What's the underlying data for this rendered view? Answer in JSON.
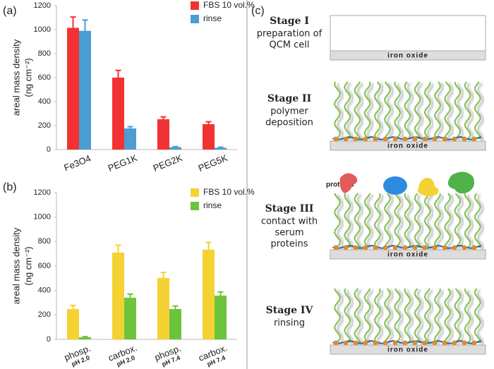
{
  "panel_labels": [
    "(a)",
    "(b)",
    "(c)"
  ],
  "chart_data": [
    {
      "type": "bar",
      "ylabel": [
        "areal mass density",
        "(ng cm⁻²)"
      ],
      "categories": [
        "Fe3O4",
        "PEG1K",
        "PEG2K",
        "PEG5K"
      ],
      "series": [
        {
          "name": "FBS 10 vol.%",
          "color": "#f23232",
          "values": [
            1015,
            600,
            253,
            212
          ],
          "errors": [
            90,
            60,
            20,
            20
          ]
        },
        {
          "name": "rinse",
          "color": "#4b9dd2",
          "values": [
            990,
            176,
            20,
            15
          ],
          "errors": [
            90,
            15,
            5,
            5
          ]
        }
      ],
      "ylim": [
        0,
        1200
      ],
      "yticks": [
        0,
        200,
        400,
        600,
        800,
        1000,
        1200
      ]
    },
    {
      "type": "bar",
      "ylabel": [
        "areal mass density",
        "(ng cm⁻²)"
      ],
      "categories": [
        "phosp.",
        "carbox.",
        "phosp.",
        "carbox."
      ],
      "category_sublabels": [
        "pH 2.0",
        "pH 2.0",
        "pH 7.4",
        "pH 7.4"
      ],
      "series": [
        {
          "name": "FBS 10 vol.%",
          "color": "#f5d233",
          "values": [
            248,
            710,
            502,
            733
          ],
          "errors": [
            30,
            60,
            45,
            60
          ]
        },
        {
          "name": "rinse",
          "color": "#6cc43c",
          "values": [
            17,
            340,
            248,
            358
          ],
          "errors": [
            5,
            30,
            25,
            30
          ]
        }
      ],
      "ylim": [
        0,
        1200
      ],
      "yticks": [
        0,
        200,
        400,
        600,
        800,
        1000,
        1200
      ]
    }
  ],
  "diagram": {
    "proteins_label": "proteins",
    "stages": [
      {
        "title": "Stage I",
        "lines": [
          "preparation of",
          "QCM cell"
        ],
        "substrate": "iron oxide"
      },
      {
        "title": "Stage II",
        "lines": [
          "polymer",
          "deposition"
        ],
        "substrate": "iron oxide"
      },
      {
        "title": "Stage III",
        "lines": [
          "contact with",
          "serum",
          "proteins"
        ],
        "substrate": "iron oxide"
      },
      {
        "title": "Stage IV",
        "lines": [
          "rinsing"
        ],
        "substrate": "iron oxide"
      }
    ]
  }
}
